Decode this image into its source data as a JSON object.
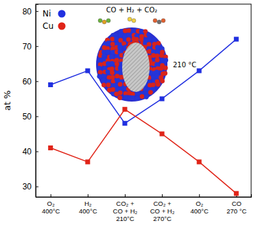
{
  "chart_data": {
    "type": "line",
    "y_label": "at %",
    "categories": [
      "O₂\n400°C",
      "H₂\n400°C",
      "CO₂ +\nCO + H₂\n210°C",
      "CO₂ +\nCO + H₂\n270°C",
      "O₂\n400°C",
      "CO\n270 °C"
    ],
    "series": [
      {
        "name": "Ni",
        "color": "#2130e0",
        "marker": "square",
        "line_style": "solid",
        "values": [
          59,
          63,
          48,
          55,
          63,
          72
        ]
      },
      {
        "name": "Cu",
        "color": "#e02418",
        "marker": "square",
        "line_style": "solid",
        "values": [
          41,
          37,
          52,
          45,
          37,
          28
        ]
      }
    ],
    "ylim": [
      27,
      82
    ],
    "yticks": [
      30,
      40,
      50,
      60,
      70,
      80
    ],
    "legend": "upper left",
    "annotations": [
      {
        "text": "CO + H₂ + CO₂"
      },
      {
        "text": "210 °C"
      }
    ]
  }
}
